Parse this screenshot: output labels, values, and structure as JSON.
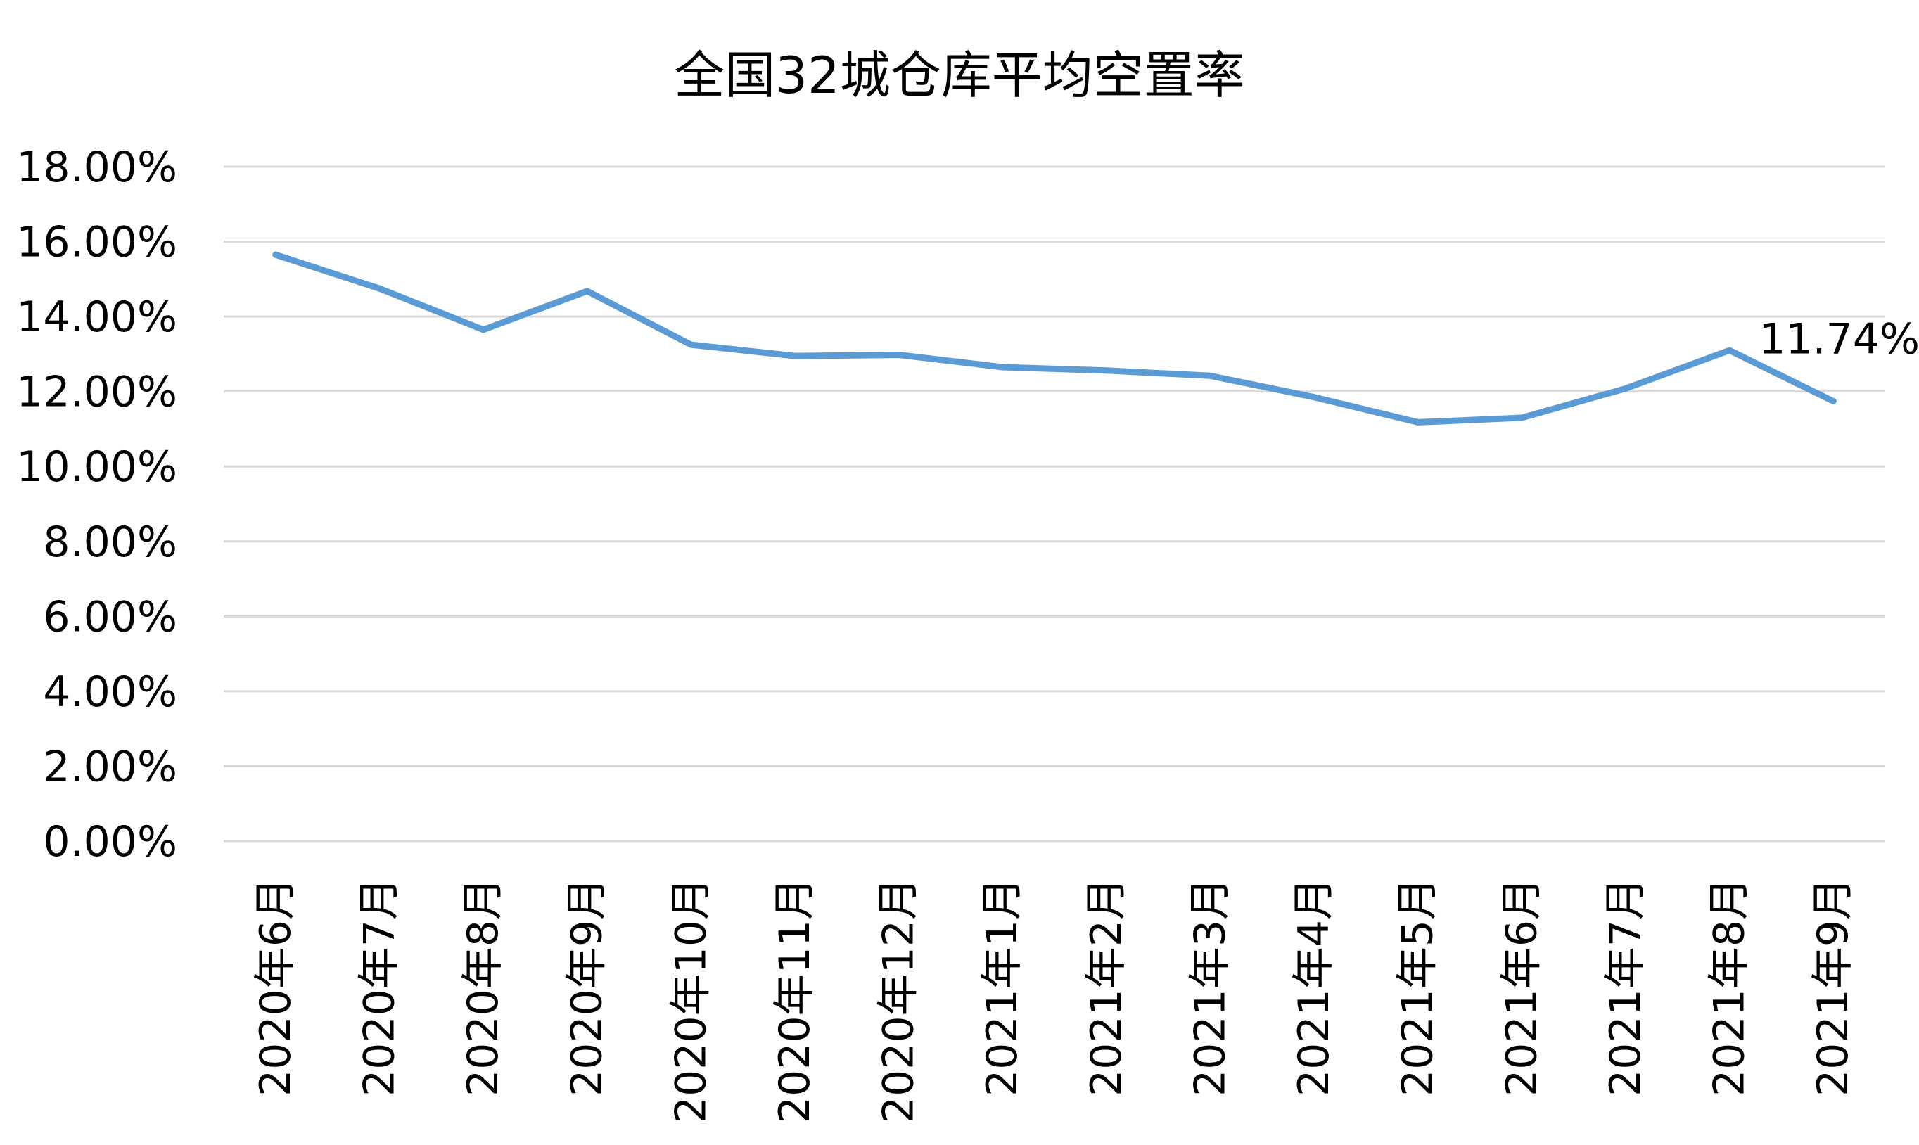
{
  "chart_data": {
    "type": "line",
    "title": "全国32城仓库平均空置率",
    "xlabel": "",
    "ylabel": "",
    "categories": [
      "2020年6月",
      "2020年7月",
      "2020年8月",
      "2020年9月",
      "2020年10月",
      "2020年11月",
      "2020年12月",
      "2021年1月",
      "2021年2月",
      "2021年3月",
      "2021年4月",
      "2021年5月",
      "2021年6月",
      "2021年7月",
      "2021年8月",
      "2021年9月"
    ],
    "series": [
      {
        "values": [
          15.65,
          14.75,
          13.65,
          14.68,
          13.25,
          12.95,
          12.98,
          12.65,
          12.56,
          12.42,
          11.85,
          11.18,
          11.3,
          12.08,
          13.1,
          11.74
        ]
      }
    ],
    "ylim": [
      0,
      18
    ],
    "yticks": [
      "0.00%",
      "2.00%",
      "4.00%",
      "6.00%",
      "8.00%",
      "10.00%",
      "12.00%",
      "14.00%",
      "16.00%",
      "18.00%"
    ],
    "ytick_values": [
      0,
      2,
      4,
      6,
      8,
      10,
      12,
      14,
      16,
      18
    ],
    "grid": true,
    "legend": "none",
    "data_labels": [
      {
        "index": 15,
        "text": "11.74%"
      }
    ],
    "colors": {
      "line": "#5B9BD5",
      "grid": "#D9D9D9",
      "text": "#000000"
    }
  }
}
